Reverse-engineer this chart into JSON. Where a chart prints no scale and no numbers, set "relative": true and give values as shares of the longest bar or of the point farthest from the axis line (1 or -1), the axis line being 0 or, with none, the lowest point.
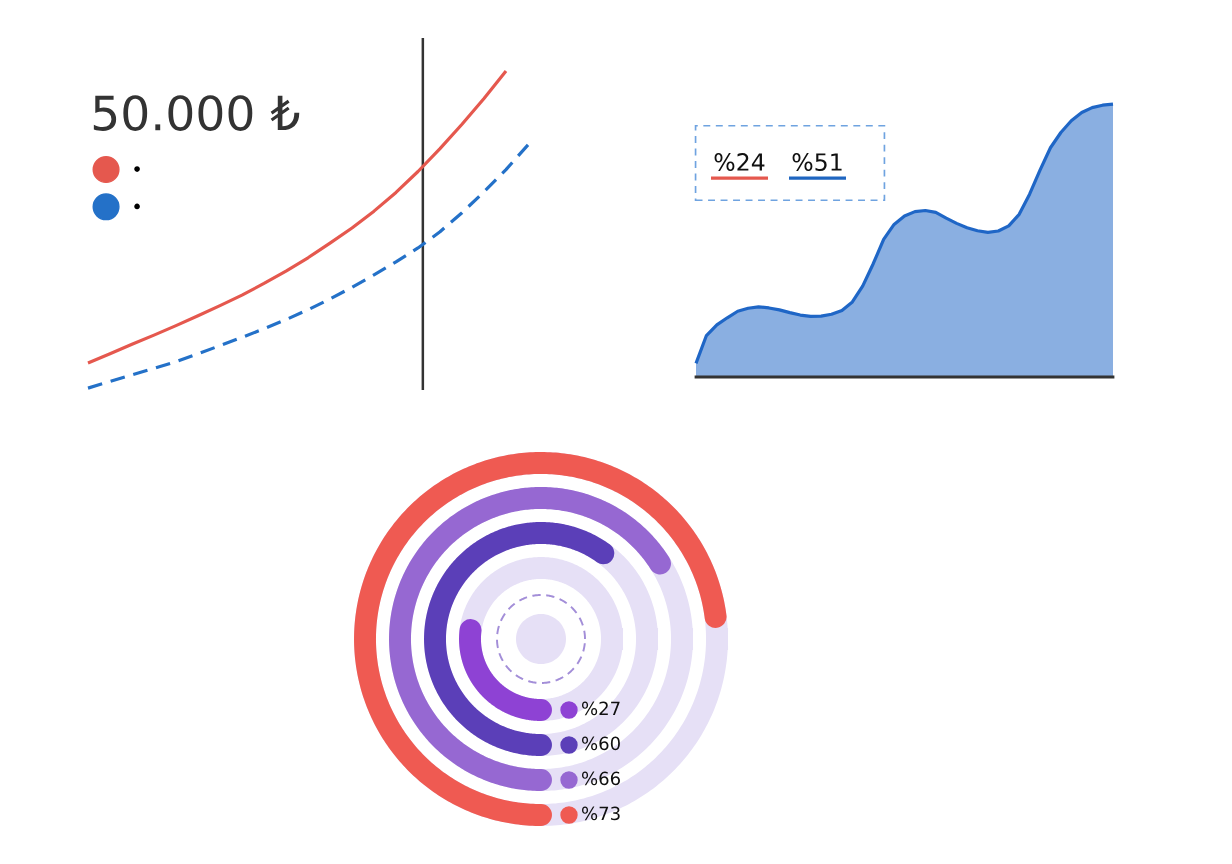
{
  "chart_data": [
    {
      "type": "line",
      "title": "50.000 ₺",
      "categories": [
        null,
        null,
        null,
        null,
        null,
        null,
        null,
        null,
        null,
        null,
        null,
        null,
        null,
        null,
        null,
        null,
        null,
        null,
        null,
        null,
        null
      ],
      "relative": true,
      "legend": "top left",
      "series": [
        {
          "name": "•",
          "color": "#e5584e",
          "line_style": "solid",
          "values": [
            0.079,
            0.108,
            0.138,
            0.167,
            0.197,
            0.228,
            0.26,
            0.293,
            0.33,
            0.369,
            0.411,
            0.457,
            0.505,
            0.558,
            0.617,
            0.683,
            0.755,
            0.832,
            0.913,
            1.0,
            null
          ]
        },
        {
          "name": "•",
          "color": "#2471c8",
          "line_style": "dashed",
          "values": [
            0.0,
            0.021,
            0.042,
            0.062,
            0.083,
            0.108,
            0.134,
            0.16,
            0.187,
            0.216,
            0.247,
            0.281,
            0.318,
            0.357,
            0.398,
            0.442,
            0.493,
            0.553,
            0.619,
            0.689,
            0.767
          ]
        }
      ]
    },
    {
      "type": "other",
      "annotations": [
        "%24",
        "%51"
      ],
      "colors": [
        "#e5584e",
        "#1f66c1"
      ]
    },
    {
      "type": "area",
      "categories": [
        null,
        null,
        null,
        null,
        null,
        null,
        null,
        null,
        null,
        null,
        null,
        null,
        null,
        null,
        null,
        null,
        null,
        null,
        null,
        null,
        null,
        null,
        null,
        null,
        null,
        null,
        null,
        null,
        null,
        null,
        null,
        null,
        null,
        null,
        null,
        null,
        null,
        null,
        null,
        null,
        null
      ],
      "relative": true,
      "color": "#1f66c6",
      "values": [
        0.05,
        0.152,
        0.191,
        0.217,
        0.241,
        0.252,
        0.257,
        0.253,
        0.246,
        0.236,
        0.227,
        0.222,
        0.223,
        0.23,
        0.244,
        0.275,
        0.334,
        0.415,
        0.504,
        0.559,
        0.59,
        0.606,
        0.61,
        0.603,
        0.582,
        0.563,
        0.547,
        0.536,
        0.53,
        0.535,
        0.554,
        0.596,
        0.67,
        0.758,
        0.84,
        0.896,
        0.939,
        0.969,
        0.987,
        0.996,
        1.0
      ]
    },
    {
      "type": "other",
      "values": [
        27,
        60,
        66,
        73
      ],
      "value_labels": [
        "%27",
        "%60",
        "%66",
        "%73"
      ],
      "colors": [
        "#8e42d4",
        "#5b3fb8",
        "#9668d2",
        "#ef5a52"
      ]
    }
  ]
}
